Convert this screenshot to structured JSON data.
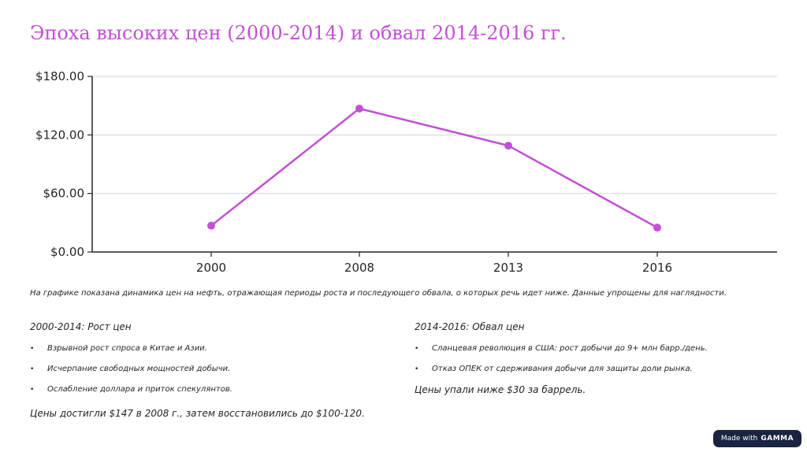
{
  "slide": {
    "title": "Эпоха высоких цен (2000-2014) и обвал 2014-2016 гг.",
    "caption": "На графике показана динамика цен на нефть, отражающая периоды роста и последующего обвала, о которых речь идет ниже. Данные упрощены для наглядности."
  },
  "left_column": {
    "heading": "2000-2014: Рост цен",
    "bullets": [
      "Взрывной рост спроса в Китае и Азии.",
      "Исчерпание свободных мощностей добычи.",
      "Ослабление доллара и приток спекулянтов."
    ],
    "summary": "Цены достигли $147 в 2008 г., затем восстановились до $100-120."
  },
  "right_column": {
    "heading": "2014-2016: Обвал цен",
    "bullets": [
      "Сланцевая революция в США: рост добычи до 9+ млн барр./день.",
      "Отказ ОПЕК от сдерживания добычи для защиты доли рынка."
    ],
    "summary": "Цены упали ниже $30 за баррель."
  },
  "badge": {
    "prefix": "Made with",
    "brand": "GAMMA"
  },
  "chart_data": {
    "type": "line",
    "categories": [
      "2000",
      "2008",
      "2013",
      "2016"
    ],
    "values": [
      27,
      147,
      109,
      25
    ],
    "ylim": [
      0,
      180
    ],
    "yticks": [
      0,
      60,
      120,
      180
    ],
    "ytick_labels": [
      "$0.00",
      "$60.00",
      "$120.00",
      "$180.00"
    ],
    "grid": true,
    "legend": "none",
    "line_color": "#c44fd6"
  }
}
